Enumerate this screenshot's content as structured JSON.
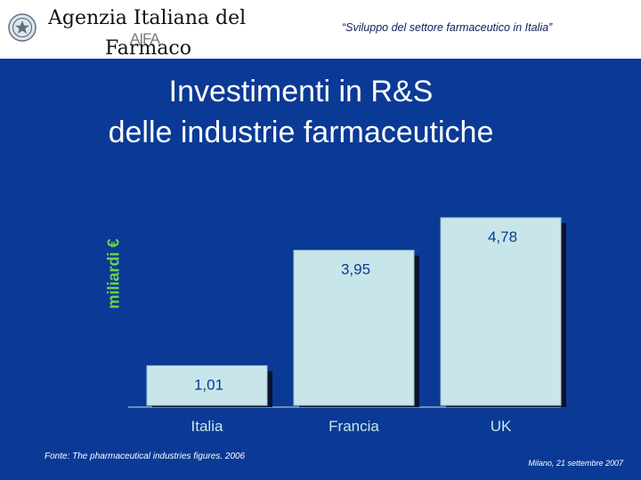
{
  "header": {
    "agency_line1": "Agenzia Italiana del",
    "agency_line2": "Farmaco",
    "logo_text": "AIFA",
    "quote": "“Sviluppo del settore farmaceutico in Italia”",
    "emblem_icon": "italian-republic-emblem-icon"
  },
  "title": {
    "line1": "Investimenti in R&S",
    "line2": "delle industrie farmaceutiche"
  },
  "chart_data": {
    "type": "bar",
    "categories": [
      "Italia",
      "Francia",
      "UK"
    ],
    "values": [
      1.01,
      3.95,
      4.78
    ],
    "value_labels": [
      "1,01",
      "3,95",
      "4,78"
    ],
    "title": "Investimenti in R&S delle industrie farmaceutiche",
    "xlabel": "",
    "ylabel": "miliardi €",
    "ylim": [
      0,
      5.3
    ],
    "grid": false,
    "legend": "none",
    "bar_color": "#c8e6ea",
    "bar_shadow_color": "#0a1230",
    "label_color": "#0a3a96",
    "category_color": "#c8e6ea",
    "ylabel_color": "#6fd14a"
  },
  "footer": {
    "source": "Fonte: The pharmaceutical industries figures. 2006",
    "date": "Milano, 21 settembre 2007"
  }
}
